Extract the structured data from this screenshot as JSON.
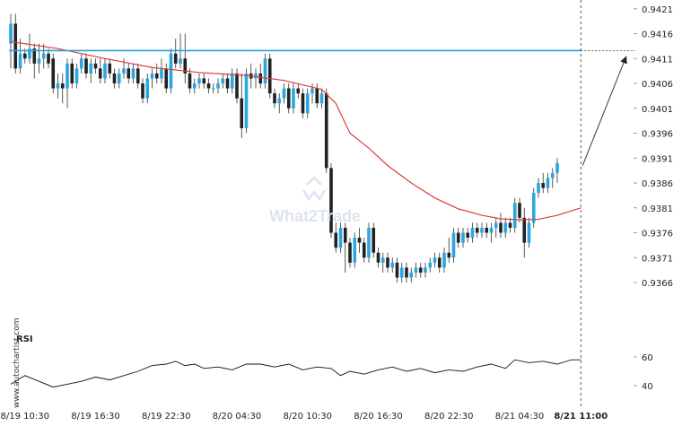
{
  "chart_data": {
    "type": "candlestick",
    "y_ticks": [
      "0.9421",
      "0.9416",
      "0.9411",
      "0.9406",
      "0.9401",
      "0.9396",
      "0.9391",
      "0.9386",
      "0.9381",
      "0.9376",
      "0.9371",
      "0.9366"
    ],
    "y_ticks_values": [
      0.9421,
      0.9416,
      0.9411,
      0.9406,
      0.9401,
      0.9396,
      0.9391,
      0.9386,
      0.9381,
      0.9376,
      0.9371,
      0.9366
    ],
    "ylim": [
      0.93615,
      0.94215
    ],
    "x_ticks": [
      "8/19 10:30",
      "8/19 16:30",
      "8/19 22:30",
      "8/20 04:30",
      "8/20 10:30",
      "8/20 16:30",
      "8/20 22:30",
      "8/21 04:30"
    ],
    "x_ticks_index": [
      3,
      18,
      33,
      48,
      63,
      78,
      93,
      108
    ],
    "current_time_label": "8/21 11:00",
    "current_index": 121,
    "grid": false,
    "resistance_level": 0.94126,
    "projection": {
      "from_index": 121,
      "from_value": 0.93895,
      "to_value": 0.94115
    },
    "candles": [
      [
        0.9414,
        0.942,
        0.9409,
        0.9418
      ],
      [
        0.9418,
        0.942,
        0.9408,
        0.9409
      ],
      [
        0.9409,
        0.9415,
        0.9408,
        0.9412
      ],
      [
        0.9412,
        0.9413,
        0.941,
        0.9411
      ],
      [
        0.9411,
        0.9416,
        0.941,
        0.9413
      ],
      [
        0.9413,
        0.9414,
        0.9407,
        0.941
      ],
      [
        0.941,
        0.9414,
        0.9408,
        0.9411
      ],
      [
        0.9411,
        0.9414,
        0.9409,
        0.9412
      ],
      [
        0.9412,
        0.9413,
        0.9409,
        0.941
      ],
      [
        0.9411,
        0.9412,
        0.9404,
        0.9405
      ],
      [
        0.9405,
        0.9408,
        0.9403,
        0.9406
      ],
      [
        0.9406,
        0.9408,
        0.9402,
        0.9405
      ],
      [
        0.9405,
        0.9411,
        0.9401,
        0.941
      ],
      [
        0.941,
        0.9411,
        0.9405,
        0.9406
      ],
      [
        0.9406,
        0.941,
        0.9405,
        0.9409
      ],
      [
        0.9409,
        0.9412,
        0.9408,
        0.9411
      ],
      [
        0.9411,
        0.9412,
        0.9407,
        0.9408
      ],
      [
        0.9408,
        0.9411,
        0.9406,
        0.941
      ],
      [
        0.941,
        0.9411,
        0.9408,
        0.9409
      ],
      [
        0.9409,
        0.9411,
        0.9406,
        0.9407
      ],
      [
        0.9407,
        0.9411,
        0.9406,
        0.941
      ],
      [
        0.941,
        0.9411,
        0.9407,
        0.9408
      ],
      [
        0.9408,
        0.9409,
        0.9405,
        0.9406
      ],
      [
        0.9406,
        0.9409,
        0.9405,
        0.9408
      ],
      [
        0.9408,
        0.9411,
        0.9407,
        0.9409
      ],
      [
        0.9409,
        0.941,
        0.9406,
        0.9407
      ],
      [
        0.9407,
        0.941,
        0.9406,
        0.9409
      ],
      [
        0.9409,
        0.941,
        0.9405,
        0.9406
      ],
      [
        0.9406,
        0.9407,
        0.9402,
        0.9403
      ],
      [
        0.9403,
        0.9408,
        0.9402,
        0.9407
      ],
      [
        0.9407,
        0.9409,
        0.9405,
        0.9408
      ],
      [
        0.9408,
        0.941,
        0.9406,
        0.9407
      ],
      [
        0.9407,
        0.9411,
        0.9406,
        0.9409
      ],
      [
        0.9409,
        0.941,
        0.9404,
        0.9405
      ],
      [
        0.9405,
        0.9413,
        0.9404,
        0.9412
      ],
      [
        0.9412,
        0.9415,
        0.9409,
        0.941
      ],
      [
        0.941,
        0.9416,
        0.9409,
        0.9411
      ],
      [
        0.9411,
        0.9416,
        0.9406,
        0.9408
      ],
      [
        0.9408,
        0.9409,
        0.9404,
        0.9405
      ],
      [
        0.9405,
        0.9407,
        0.9404,
        0.9406
      ],
      [
        0.9406,
        0.9408,
        0.9405,
        0.9407
      ],
      [
        0.9407,
        0.9408,
        0.9405,
        0.9406
      ],
      [
        0.9406,
        0.9407,
        0.9404,
        0.9405
      ],
      [
        0.9405,
        0.9406,
        0.9404,
        0.9405
      ],
      [
        0.9405,
        0.9407,
        0.9404,
        0.9406
      ],
      [
        0.9406,
        0.9408,
        0.9405,
        0.9407
      ],
      [
        0.9407,
        0.9408,
        0.9404,
        0.9405
      ],
      [
        0.9405,
        0.9409,
        0.9404,
        0.9408
      ],
      [
        0.9408,
        0.9409,
        0.9402,
        0.9403
      ],
      [
        0.9403,
        0.9408,
        0.9395,
        0.9397
      ],
      [
        0.9397,
        0.9409,
        0.9396,
        0.9408
      ],
      [
        0.9408,
        0.941,
        0.9405,
        0.9407
      ],
      [
        0.9407,
        0.9409,
        0.9405,
        0.9408
      ],
      [
        0.9408,
        0.941,
        0.9405,
        0.9406
      ],
      [
        0.9406,
        0.9412,
        0.9405,
        0.9411
      ],
      [
        0.9411,
        0.9412,
        0.9403,
        0.9404
      ],
      [
        0.9404,
        0.9405,
        0.9401,
        0.9402
      ],
      [
        0.9402,
        0.9404,
        0.94,
        0.9403
      ],
      [
        0.9403,
        0.9406,
        0.9402,
        0.9405
      ],
      [
        0.9405,
        0.9406,
        0.94,
        0.9401
      ],
      [
        0.9401,
        0.9406,
        0.94,
        0.9405
      ],
      [
        0.9405,
        0.9406,
        0.9403,
        0.9404
      ],
      [
        0.9404,
        0.9405,
        0.9399,
        0.94
      ],
      [
        0.94,
        0.9405,
        0.9399,
        0.9404
      ],
      [
        0.9404,
        0.9406,
        0.9402,
        0.9405
      ],
      [
        0.9405,
        0.9406,
        0.9401,
        0.9402
      ],
      [
        0.9402,
        0.9405,
        0.9401,
        0.9404
      ],
      [
        0.9404,
        0.9405,
        0.9388,
        0.9389
      ],
      [
        0.9389,
        0.939,
        0.9375,
        0.9376
      ],
      [
        0.9376,
        0.9378,
        0.9372,
        0.9373
      ],
      [
        0.9373,
        0.9378,
        0.9372,
        0.9377
      ],
      [
        0.9377,
        0.9378,
        0.9368,
        0.9374
      ],
      [
        0.9374,
        0.9375,
        0.9369,
        0.937
      ],
      [
        0.937,
        0.9376,
        0.9369,
        0.9375
      ],
      [
        0.9375,
        0.9377,
        0.9372,
        0.9374
      ],
      [
        0.9374,
        0.9375,
        0.937,
        0.9371
      ],
      [
        0.9371,
        0.9378,
        0.937,
        0.9377
      ],
      [
        0.9377,
        0.9378,
        0.9371,
        0.9372
      ],
      [
        0.9372,
        0.9373,
        0.9369,
        0.937
      ],
      [
        0.937,
        0.9372,
        0.9368,
        0.9371
      ],
      [
        0.9371,
        0.9372,
        0.9368,
        0.9369
      ],
      [
        0.9369,
        0.9371,
        0.9368,
        0.937
      ],
      [
        0.937,
        0.9371,
        0.9366,
        0.9367
      ],
      [
        0.9367,
        0.937,
        0.9366,
        0.9369
      ],
      [
        0.9369,
        0.937,
        0.9366,
        0.9367
      ],
      [
        0.9367,
        0.9369,
        0.9366,
        0.9368
      ],
      [
        0.9368,
        0.937,
        0.9367,
        0.9369
      ],
      [
        0.9369,
        0.937,
        0.9367,
        0.9368
      ],
      [
        0.9368,
        0.937,
        0.9367,
        0.9369
      ],
      [
        0.9369,
        0.9371,
        0.9368,
        0.937
      ],
      [
        0.937,
        0.9372,
        0.9369,
        0.9371
      ],
      [
        0.9371,
        0.9372,
        0.9368,
        0.9369
      ],
      [
        0.9369,
        0.9373,
        0.9368,
        0.9372
      ],
      [
        0.9372,
        0.9375,
        0.937,
        0.9371
      ],
      [
        0.9371,
        0.9377,
        0.937,
        0.9376
      ],
      [
        0.9376,
        0.9377,
        0.9373,
        0.9374
      ],
      [
        0.9374,
        0.9377,
        0.9373,
        0.9376
      ],
      [
        0.9376,
        0.9377,
        0.9374,
        0.9375
      ],
      [
        0.9375,
        0.9378,
        0.9374,
        0.9377
      ],
      [
        0.9377,
        0.9378,
        0.9375,
        0.9376
      ],
      [
        0.9376,
        0.9378,
        0.9375,
        0.9377
      ],
      [
        0.9377,
        0.9378,
        0.9375,
        0.9376
      ],
      [
        0.9376,
        0.9378,
        0.9374,
        0.9377
      ],
      [
        0.9377,
        0.9379,
        0.9375,
        0.9378
      ],
      [
        0.9378,
        0.938,
        0.9375,
        0.9376
      ],
      [
        0.9376,
        0.9379,
        0.9375,
        0.9378
      ],
      [
        0.9378,
        0.9379,
        0.9376,
        0.9377
      ],
      [
        0.9377,
        0.9383,
        0.9376,
        0.9382
      ],
      [
        0.9382,
        0.9383,
        0.9378,
        0.9379
      ],
      [
        0.9379,
        0.9381,
        0.9371,
        0.9374
      ],
      [
        0.9374,
        0.9379,
        0.9373,
        0.9378
      ],
      [
        0.9378,
        0.9385,
        0.9377,
        0.9384
      ],
      [
        0.9384,
        0.9387,
        0.9383,
        0.9386
      ],
      [
        0.9386,
        0.9388,
        0.9384,
        0.9385
      ],
      [
        0.9385,
        0.9388,
        0.9384,
        0.9387
      ],
      [
        0.9387,
        0.9389,
        0.9385,
        0.9388
      ],
      [
        0.9388,
        0.9391,
        0.9386,
        0.939
      ]
    ],
    "moving_average": [
      [
        0,
        0.94144
      ],
      [
        10,
        0.9413
      ],
      [
        20,
        0.9411
      ],
      [
        30,
        0.94092
      ],
      [
        40,
        0.94082
      ],
      [
        50,
        0.94076
      ],
      [
        58,
        0.94066
      ],
      [
        62,
        0.94057
      ],
      [
        66,
        0.94048
      ],
      [
        69,
        0.9402
      ],
      [
        72,
        0.9396
      ],
      [
        76,
        0.9393
      ],
      [
        80,
        0.93895
      ],
      [
        85,
        0.9386
      ],
      [
        90,
        0.9383
      ],
      [
        95,
        0.93808
      ],
      [
        100,
        0.93795
      ],
      [
        104,
        0.93788
      ],
      [
        108,
        0.93786
      ],
      [
        112,
        0.93787
      ],
      [
        116,
        0.93795
      ],
      [
        121,
        0.9381
      ]
    ],
    "rsi": {
      "title": "RSI",
      "y_ticks": [
        "60",
        "40"
      ],
      "y_ticks_values": [
        60,
        40
      ],
      "ylim": [
        33,
        68
      ],
      "values": [
        [
          0,
          41
        ],
        [
          3,
          47
        ],
        [
          6,
          43
        ],
        [
          9,
          39
        ],
        [
          12,
          41
        ],
        [
          15,
          43
        ],
        [
          18,
          46
        ],
        [
          21,
          44
        ],
        [
          24,
          47
        ],
        [
          27,
          50
        ],
        [
          30,
          54
        ],
        [
          33,
          55
        ],
        [
          35,
          57
        ],
        [
          37,
          54
        ],
        [
          39,
          55
        ],
        [
          41,
          52
        ],
        [
          44,
          53
        ],
        [
          47,
          51
        ],
        [
          50,
          55
        ],
        [
          53,
          55
        ],
        [
          56,
          53
        ],
        [
          59,
          55
        ],
        [
          62,
          51
        ],
        [
          65,
          53
        ],
        [
          68,
          52
        ],
        [
          70,
          47
        ],
        [
          72,
          50
        ],
        [
          75,
          48
        ],
        [
          78,
          51
        ],
        [
          81,
          53
        ],
        [
          84,
          50
        ],
        [
          87,
          52
        ],
        [
          90,
          49
        ],
        [
          93,
          51
        ],
        [
          96,
          50
        ],
        [
          99,
          53
        ],
        [
          102,
          55
        ],
        [
          105,
          52
        ],
        [
          107,
          58
        ],
        [
          110,
          56
        ],
        [
          113,
          57
        ],
        [
          116,
          55
        ],
        [
          119,
          58
        ],
        [
          121,
          58
        ]
      ]
    }
  },
  "watermark": "What2Trade",
  "side_credit": "www.autochartist.com",
  "colors": {
    "bull": "#2aa6e0",
    "bear": "#222222",
    "ma": "#e03c3c",
    "level": "#2a9fd8",
    "projection": "#222222",
    "rsi_line": "#111111"
  }
}
